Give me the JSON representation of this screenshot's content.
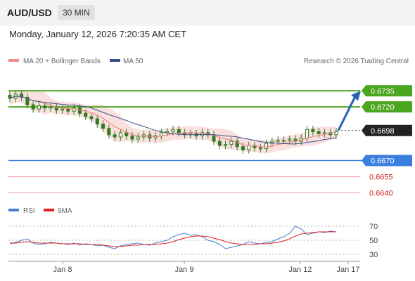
{
  "header": {
    "symbol": "AUD/USD",
    "timeframe": "30 MIN"
  },
  "datetime": "Monday, January 12, 2026 7:20:35 AM CET",
  "legend": {
    "ma_bb": "MA 20 + Bollinger Bands",
    "ma50": "MA 50",
    "credit": "Research © 2026 Trading Central",
    "rsi": "RSI",
    "rsi_ma": "9MA"
  },
  "colors": {
    "candle": "#2f7d1f",
    "bollinger": "#f7c9c9",
    "ma20": "#f08a8a",
    "ma50": "#3a4f8a",
    "resistance": "#4aa51f",
    "pivot": "#3a7ee0",
    "support": "#f0a0a0",
    "projection": "#2a62b0",
    "rsi": "#4a7fd0",
    "rsi_ma": "#e02020"
  },
  "chart_data": [
    {
      "type": "candlestick",
      "x_tick_labels": [
        "Jan 8",
        "Jan 9",
        "Jan 12",
        "Jan 17"
      ],
      "ylim": [
        0.6635,
        0.6745
      ],
      "close_path": [
        0.6728,
        0.6732,
        0.6729,
        0.6722,
        0.6718,
        0.6721,
        0.6719,
        0.672,
        0.6717,
        0.6718,
        0.6716,
        0.6719,
        0.6714,
        0.6711,
        0.6709,
        0.6704,
        0.67,
        0.6694,
        0.6692,
        0.6696,
        0.6693,
        0.669,
        0.6692,
        0.6694,
        0.6691,
        0.6693,
        0.6696,
        0.6697,
        0.6699,
        0.6696,
        0.6694,
        0.6695,
        0.6693,
        0.6696,
        0.6694,
        0.6688,
        0.6684,
        0.6685,
        0.6688,
        0.6683,
        0.668,
        0.6684,
        0.6682,
        0.6681,
        0.6686,
        0.6688,
        0.6689,
        0.6689,
        0.669,
        0.6688,
        0.6691,
        0.6699,
        0.6697,
        0.6695,
        0.6696,
        0.6694,
        0.6697
      ],
      "levels": [
        {
          "value": 0.6735,
          "label": "0.6735",
          "kind": "resistance"
        },
        {
          "value": 0.672,
          "label": "0.6720",
          "kind": "resistance"
        },
        {
          "value": 0.6698,
          "label": "0.6698",
          "kind": "last"
        },
        {
          "value": 0.667,
          "label": "0.6670",
          "kind": "pivot"
        },
        {
          "value": 0.6655,
          "label": "0.6655",
          "kind": "support"
        },
        {
          "value": 0.664,
          "label": "0.6640",
          "kind": "support"
        }
      ],
      "projection": {
        "from": 0.6698,
        "to": 0.6733
      }
    },
    {
      "type": "line",
      "name": "RSI",
      "ylim": [
        20,
        80
      ],
      "y_tick_labels": [
        "70",
        "50",
        "30"
      ],
      "y_ticks": [
        70,
        50,
        30
      ],
      "rsi": [
        45,
        47,
        50,
        52,
        46,
        44,
        45,
        47,
        46,
        45,
        44,
        46,
        43,
        45,
        44,
        42,
        43,
        40,
        38,
        42,
        44,
        45,
        46,
        44,
        43,
        46,
        48,
        50,
        55,
        58,
        60,
        57,
        58,
        55,
        50,
        48,
        44,
        38,
        40,
        42,
        44,
        48,
        46,
        45,
        47,
        48,
        52,
        55,
        60,
        70,
        66,
        58,
        60,
        62,
        61,
        63,
        62
      ],
      "rsi_ma": [
        46,
        46,
        47,
        48,
        47,
        46,
        46,
        46,
        46,
        45,
        45,
        45,
        45,
        44,
        44,
        44,
        43,
        42,
        41,
        41,
        42,
        43,
        43,
        44,
        44,
        44,
        45,
        46,
        48,
        51,
        53,
        55,
        56,
        56,
        55,
        53,
        51,
        48,
        46,
        45,
        44,
        44,
        44,
        45,
        45,
        46,
        47,
        49,
        52,
        56,
        59,
        60,
        61,
        62,
        62,
        62,
        62
      ]
    }
  ]
}
